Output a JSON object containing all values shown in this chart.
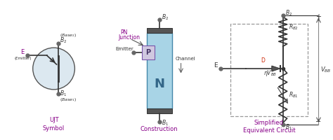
{
  "bg_color": "#ffffff",
  "light_blue_fill": "#cce0ee",
  "n_body_color": "#a8d4e6",
  "p_region_fill": "#d0c8e0",
  "dashed_box_color": "#999999",
  "circle_fill": "#dce8f0",
  "dark_cap": "#555555",
  "wire_color": "#333333",
  "resistor_color": "#333333",
  "label_color": "#333333",
  "purple_color": "#880088",
  "diode_fill": "#555555",
  "section1_title": "UJT\nSymbol",
  "section2_title": "Construction",
  "section3_title": "Simplified\nEquivalent Circuit"
}
